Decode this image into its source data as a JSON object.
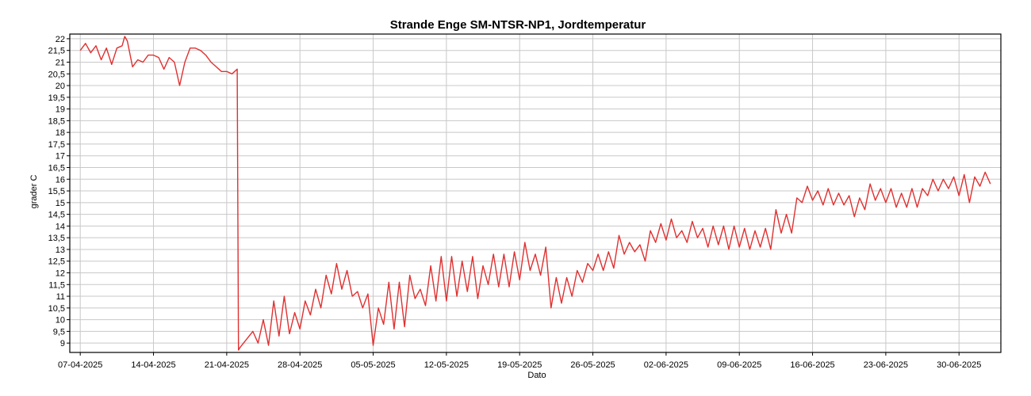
{
  "chart_data": {
    "type": "line",
    "title": "Strande Enge SM-NTSR-NP1, Jordtemperatur",
    "xlabel": "Dato",
    "ylabel": "grader C",
    "grid": true,
    "ylim": [
      8.6,
      22.2
    ],
    "yticks": [
      "22",
      "21,5",
      "21",
      "20,5",
      "20",
      "19,5",
      "19",
      "18,5",
      "18",
      "17,5",
      "17",
      "16,5",
      "16",
      "15,5",
      "15",
      "14,5",
      "14",
      "13,5",
      "13",
      "12,5",
      "12",
      "11,5",
      "11",
      "10,5",
      "10",
      "9,5",
      "9"
    ],
    "xlim": [
      "2025-04-06",
      "2025-07-04"
    ],
    "xticks": [
      "07-04-2025",
      "14-04-2025",
      "21-04-2025",
      "28-04-2025",
      "05-05-2025",
      "12-05-2025",
      "19-05-2025",
      "26-05-2025",
      "02-06-2025",
      "09-06-2025",
      "16-06-2025",
      "23-06-2025",
      "30-06-2025"
    ],
    "series": [
      {
        "color": "#e03030",
        "x": [
          "2025-04-07",
          "2025-04-07 12:00",
          "2025-04-08",
          "2025-04-08 12:00",
          "2025-04-09",
          "2025-04-09 12:00",
          "2025-04-10",
          "2025-04-10 12:00",
          "2025-04-11",
          "2025-04-11 06:00",
          "2025-04-11 12:00",
          "2025-04-12",
          "2025-04-12 12:00",
          "2025-04-13",
          "2025-04-13 12:00",
          "2025-04-14",
          "2025-04-14 12:00",
          "2025-04-15",
          "2025-04-15 12:00",
          "2025-04-16",
          "2025-04-16 12:00",
          "2025-04-17",
          "2025-04-17 12:00",
          "2025-04-18",
          "2025-04-18 12:00",
          "2025-04-19",
          "2025-04-19 12:00",
          "2025-04-20",
          "2025-04-20 12:00",
          "2025-04-21",
          "2025-04-21 12:00",
          "2025-04-22",
          "2025-04-22 03:00",
          "2025-04-22 06:00",
          "2025-04-23 12:00",
          "2025-04-24",
          "2025-04-24 12:00",
          "2025-04-25",
          "2025-04-25 12:00",
          "2025-04-26",
          "2025-04-26 12:00",
          "2025-04-27",
          "2025-04-27 12:00",
          "2025-04-28",
          "2025-04-28 12:00",
          "2025-04-29",
          "2025-04-29 12:00",
          "2025-04-30",
          "2025-04-30 12:00",
          "2025-05-01",
          "2025-05-01 12:00",
          "2025-05-02",
          "2025-05-02 12:00",
          "2025-05-03",
          "2025-05-03 12:00",
          "2025-05-04",
          "2025-05-04 12:00",
          "2025-05-05",
          "2025-05-05 12:00",
          "2025-05-06",
          "2025-05-06 12:00",
          "2025-05-07",
          "2025-05-07 12:00",
          "2025-05-08",
          "2025-05-08 12:00",
          "2025-05-09",
          "2025-05-09 12:00",
          "2025-05-10",
          "2025-05-10 12:00",
          "2025-05-11",
          "2025-05-11 12:00",
          "2025-05-12",
          "2025-05-12 12:00",
          "2025-05-13",
          "2025-05-13 12:00",
          "2025-05-14",
          "2025-05-14 12:00",
          "2025-05-15",
          "2025-05-15 12:00",
          "2025-05-16",
          "2025-05-16 12:00",
          "2025-05-17",
          "2025-05-17 12:00",
          "2025-05-18",
          "2025-05-18 12:00",
          "2025-05-19",
          "2025-05-19 12:00",
          "2025-05-20",
          "2025-05-20 12:00",
          "2025-05-21",
          "2025-05-21 12:00",
          "2025-05-22",
          "2025-05-22 12:00",
          "2025-05-23",
          "2025-05-23 12:00",
          "2025-05-24",
          "2025-05-24 12:00",
          "2025-05-25",
          "2025-05-25 12:00",
          "2025-05-26",
          "2025-05-26 12:00",
          "2025-05-27",
          "2025-05-27 12:00",
          "2025-05-28",
          "2025-05-28 12:00",
          "2025-05-29",
          "2025-05-29 12:00",
          "2025-05-30",
          "2025-05-30 12:00",
          "2025-05-31",
          "2025-05-31 12:00",
          "2025-06-01",
          "2025-06-01 12:00",
          "2025-06-02",
          "2025-06-02 12:00",
          "2025-06-03",
          "2025-06-03 12:00",
          "2025-06-04",
          "2025-06-04 12:00",
          "2025-06-05",
          "2025-06-05 12:00",
          "2025-06-06",
          "2025-06-06 12:00",
          "2025-06-07",
          "2025-06-07 12:00",
          "2025-06-08",
          "2025-06-08 12:00",
          "2025-06-09",
          "2025-06-09 12:00",
          "2025-06-10",
          "2025-06-10 12:00",
          "2025-06-11",
          "2025-06-11 12:00",
          "2025-06-12",
          "2025-06-12 12:00",
          "2025-06-13",
          "2025-06-13 12:00",
          "2025-06-14",
          "2025-06-14 12:00",
          "2025-06-15",
          "2025-06-15 12:00",
          "2025-06-16",
          "2025-06-16 12:00",
          "2025-06-17",
          "2025-06-17 12:00",
          "2025-06-18",
          "2025-06-18 12:00",
          "2025-06-19",
          "2025-06-19 12:00",
          "2025-06-20",
          "2025-06-20 12:00",
          "2025-06-21",
          "2025-06-21 12:00",
          "2025-06-22",
          "2025-06-22 12:00",
          "2025-06-23",
          "2025-06-23 12:00",
          "2025-06-24",
          "2025-06-24 12:00",
          "2025-06-25",
          "2025-06-25 12:00",
          "2025-06-26",
          "2025-06-26 12:00",
          "2025-06-27",
          "2025-06-27 12:00",
          "2025-06-28",
          "2025-06-28 12:00",
          "2025-06-29",
          "2025-06-29 12:00",
          "2025-06-30",
          "2025-06-30 12:00",
          "2025-07-01",
          "2025-07-01 12:00",
          "2025-07-02",
          "2025-07-02 12:00",
          "2025-07-03"
        ],
        "y": [
          21.5,
          21.8,
          21.4,
          21.7,
          21.1,
          21.6,
          20.9,
          21.6,
          21.7,
          22.1,
          21.9,
          20.8,
          21.1,
          21.0,
          21.3,
          21.3,
          21.2,
          20.7,
          21.2,
          21.0,
          20.0,
          21.0,
          21.6,
          21.6,
          21.5,
          21.3,
          21.0,
          20.8,
          20.6,
          20.6,
          20.5,
          20.7,
          8.7,
          8.8,
          9.5,
          9.0,
          10.0,
          8.9,
          10.8,
          9.3,
          11.0,
          9.4,
          10.3,
          9.6,
          10.8,
          10.2,
          11.3,
          10.5,
          11.9,
          11.1,
          12.4,
          11.3,
          12.1,
          11.0,
          11.2,
          10.5,
          11.1,
          8.9,
          10.5,
          9.8,
          11.6,
          9.6,
          11.6,
          9.7,
          11.9,
          10.9,
          11.3,
          10.6,
          12.3,
          10.8,
          12.7,
          10.8,
          12.7,
          11.0,
          12.5,
          11.2,
          12.7,
          10.9,
          12.3,
          11.5,
          12.8,
          11.4,
          12.8,
          11.4,
          12.9,
          11.7,
          13.3,
          12.1,
          12.8,
          11.9,
          13.1,
          10.5,
          11.8,
          10.7,
          11.8,
          11.0,
          12.1,
          11.6,
          12.4,
          12.1,
          12.8,
          12.1,
          12.9,
          12.2,
          13.6,
          12.8,
          13.3,
          12.9,
          13.2,
          12.5,
          13.8,
          13.3,
          14.1,
          13.4,
          14.3,
          13.5,
          13.8,
          13.3,
          14.2,
          13.5,
          13.9,
          13.1,
          14.0,
          13.2,
          14.0,
          13.0,
          14.0,
          13.1,
          13.9,
          13.0,
          13.8,
          13.1,
          13.9,
          13.0,
          14.7,
          13.7,
          14.5,
          13.7,
          15.2,
          15.0,
          15.7,
          15.1,
          15.5,
          14.9,
          15.6,
          14.9,
          15.4,
          14.9,
          15.3,
          14.4,
          15.2,
          14.7,
          15.8,
          15.1,
          15.6,
          15.0,
          15.6,
          14.8,
          15.4,
          14.8,
          15.6,
          14.8,
          15.6,
          15.3,
          16.0,
          15.5,
          16.0,
          15.6,
          16.1,
          15.3,
          16.2,
          15.0,
          16.1,
          15.7,
          16.3,
          15.8
        ]
      }
    ]
  }
}
